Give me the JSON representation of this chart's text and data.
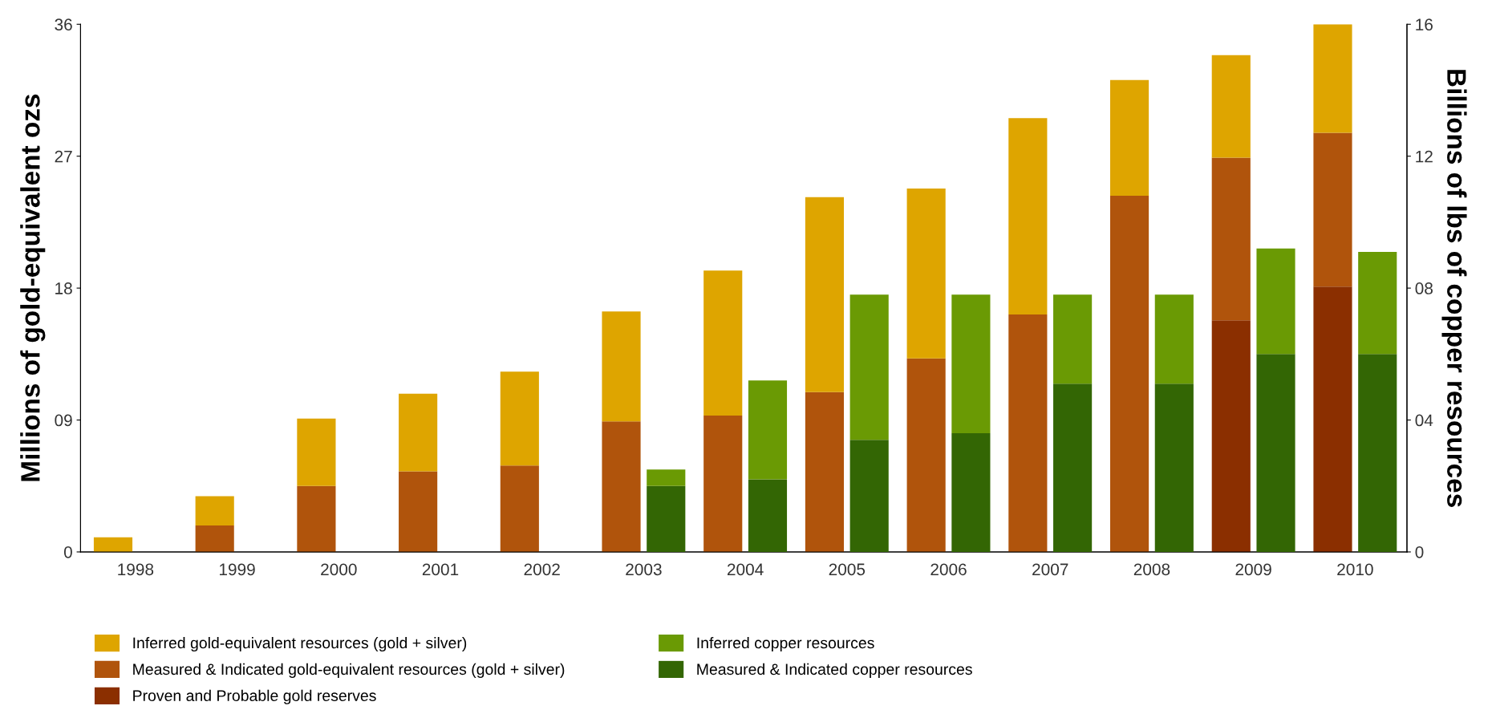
{
  "chart_data": {
    "type": "bar",
    "stacked": true,
    "categories": [
      "1998",
      "1999",
      "2000",
      "2001",
      "2002",
      "2003",
      "2004",
      "2005",
      "2006",
      "2007",
      "2008",
      "2009",
      "2010"
    ],
    "ylabel": "Millions of gold-equivalent ozs",
    "y2label": "Billions of lbs of copper resources",
    "ylim": [
      0,
      36
    ],
    "yticks": [
      0,
      {
        "value": 9,
        "label": "09"
      },
      18,
      27,
      36
    ],
    "y2lim": [
      0,
      16
    ],
    "y2ticks": [
      0,
      {
        "value": 4,
        "label": "04"
      },
      {
        "value": 8,
        "label": "08"
      },
      12,
      16
    ],
    "legend": "bottom",
    "grid": false,
    "series": [
      {
        "name": "Proven and Probable gold reserves",
        "color": "#8b2f00",
        "values": [
          0,
          0,
          0,
          0,
          0,
          0,
          0,
          0,
          0,
          0,
          0,
          15.8,
          18.1
        ]
      },
      {
        "name": "Measured & Indicated gold-equivalent resources (gold + silver)",
        "color": "#b0540c",
        "values": [
          0,
          1.8,
          4.5,
          5.5,
          5.9,
          8.9,
          9.3,
          10.9,
          13.2,
          16.2,
          24.3,
          11.1,
          10.5
        ]
      },
      {
        "name": "Inferred gold-equivalent resources (gold + silver)",
        "color": "#dea500",
        "values": [
          1.0,
          2.0,
          4.6,
          5.3,
          6.4,
          7.5,
          9.9,
          13.3,
          11.6,
          13.4,
          7.9,
          7.0,
          7.4
        ]
      },
      {
        "name": "Measured & Indicated copper resources",
        "color": "#336604",
        "axis": "y2",
        "values": [
          null,
          null,
          null,
          null,
          null,
          2.0,
          2.2,
          3.4,
          3.6,
          5.1,
          5.1,
          6.0,
          6.0
        ]
      },
      {
        "name": "Inferred copper resources",
        "color": "#6a9a04",
        "axis": "y2",
        "values": [
          null,
          null,
          null,
          null,
          null,
          0.5,
          3.0,
          4.4,
          4.2,
          2.7,
          2.7,
          3.2,
          3.1
        ]
      }
    ]
  }
}
